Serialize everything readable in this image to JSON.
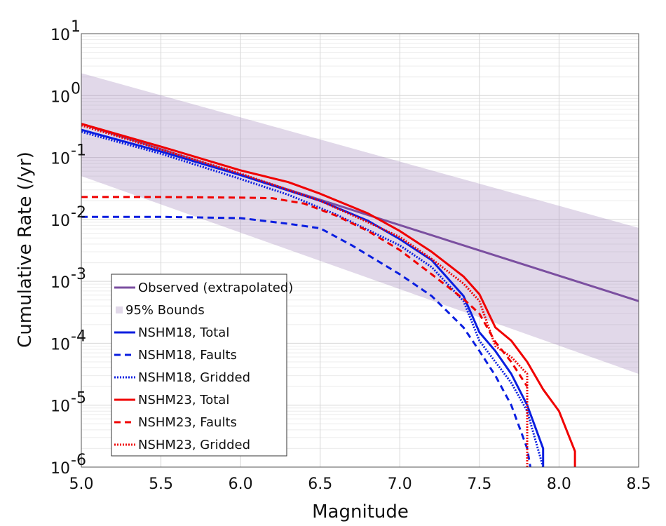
{
  "chart_data": {
    "type": "line",
    "title": "",
    "xlabel": "Magnitude",
    "ylabel": "Cumulative Rate (/yr)",
    "xlim": [
      5.0,
      8.5
    ],
    "ylim": [
      1e-06,
      10
    ],
    "yscale": "log",
    "grid": true,
    "legend_position": "bottom-left",
    "x_ticks": [
      "5.0",
      "5.5",
      "6.0",
      "6.5",
      "7.0",
      "7.5",
      "8.0",
      "8.5"
    ],
    "y_ticks": [
      {
        "base": "10",
        "exp": "-6",
        "value": 1e-06
      },
      {
        "base": "10",
        "exp": "-5",
        "value": 1e-05
      },
      {
        "base": "10",
        "exp": "-4",
        "value": 0.0001
      },
      {
        "base": "10",
        "exp": "-3",
        "value": 0.001
      },
      {
        "base": "10",
        "exp": "-2",
        "value": 0.01
      },
      {
        "base": "10",
        "exp": "-1",
        "value": 0.1
      },
      {
        "base": "10",
        "exp": "0",
        "value": 1
      },
      {
        "base": "10",
        "exp": "1",
        "value": 10
      }
    ],
    "bounds": {
      "name": "95% Bounds",
      "color": "#9b7fb5",
      "upper": [
        [
          5.0,
          2.3
        ],
        [
          8.5,
          0.0073
        ]
      ],
      "lower": [
        [
          5.0,
          0.05
        ],
        [
          8.5,
          3.2e-05
        ]
      ]
    },
    "series": [
      {
        "name": "Observed (extrapolated)",
        "color": "#7b4fa0",
        "dash": "solid",
        "points": [
          [
            5.0,
            0.35
          ],
          [
            8.5,
            0.00048
          ]
        ]
      },
      {
        "name": "NSHM18, Total",
        "color": "#0a1ee0",
        "dash": "solid",
        "points": [
          [
            5.0,
            0.28
          ],
          [
            5.5,
            0.125
          ],
          [
            6.0,
            0.052
          ],
          [
            6.5,
            0.02
          ],
          [
            6.8,
            0.0095
          ],
          [
            7.0,
            0.0048
          ],
          [
            7.2,
            0.0022
          ],
          [
            7.4,
            0.00058
          ],
          [
            7.5,
            0.00015
          ],
          [
            7.6,
            7.5e-05
          ],
          [
            7.7,
            3.2e-05
          ],
          [
            7.8,
            1e-05
          ],
          [
            7.9,
            2e-06
          ],
          [
            7.9,
            1e-06
          ]
        ]
      },
      {
        "name": "NSHM18, Faults",
        "color": "#0a1ee0",
        "dash": "dashed",
        "points": [
          [
            5.0,
            0.011
          ],
          [
            5.5,
            0.011
          ],
          [
            6.0,
            0.0105
          ],
          [
            6.3,
            0.0085
          ],
          [
            6.5,
            0.0072
          ],
          [
            6.7,
            0.0038
          ],
          [
            7.0,
            0.0013
          ],
          [
            7.2,
            0.00058
          ],
          [
            7.4,
            0.00018
          ],
          [
            7.5,
            7.5e-05
          ],
          [
            7.6,
            3e-05
          ],
          [
            7.7,
            1e-05
          ],
          [
            7.8,
            2e-06
          ],
          [
            7.82,
            1e-06
          ]
        ]
      },
      {
        "name": "NSHM18, Gridded",
        "color": "#0a1ee0",
        "dash": "dotted",
        "points": [
          [
            5.0,
            0.26
          ],
          [
            5.5,
            0.115
          ],
          [
            6.0,
            0.045
          ],
          [
            6.3,
            0.025
          ],
          [
            6.6,
            0.012
          ],
          [
            7.0,
            0.0038
          ],
          [
            7.2,
            0.0017
          ],
          [
            7.4,
            0.00048
          ],
          [
            7.5,
            0.00011
          ],
          [
            7.6,
            5e-05
          ],
          [
            7.7,
            2.3e-05
          ],
          [
            7.8,
            8e-06
          ],
          [
            7.9,
            1e-06
          ]
        ]
      },
      {
        "name": "NSHM23, Total",
        "color": "#f00000",
        "dash": "solid",
        "points": [
          [
            5.0,
            0.35
          ],
          [
            5.5,
            0.15
          ],
          [
            6.0,
            0.062
          ],
          [
            6.3,
            0.04
          ],
          [
            6.5,
            0.026
          ],
          [
            6.8,
            0.0125
          ],
          [
            7.0,
            0.0065
          ],
          [
            7.2,
            0.003
          ],
          [
            7.4,
            0.0012
          ],
          [
            7.5,
            0.00062
          ],
          [
            7.6,
            0.00018
          ],
          [
            7.7,
            0.00011
          ],
          [
            7.8,
            5e-05
          ],
          [
            7.9,
            1.8e-05
          ],
          [
            8.0,
            8e-06
          ],
          [
            8.1,
            1.8e-06
          ],
          [
            8.1,
            1e-06
          ]
        ]
      },
      {
        "name": "NSHM23, Faults",
        "color": "#f00000",
        "dash": "dashed",
        "points": [
          [
            5.0,
            0.023
          ],
          [
            5.5,
            0.023
          ],
          [
            6.0,
            0.0225
          ],
          [
            6.2,
            0.022
          ],
          [
            6.4,
            0.018
          ],
          [
            6.6,
            0.0115
          ],
          [
            6.8,
            0.0065
          ],
          [
            7.0,
            0.0032
          ],
          [
            7.2,
            0.0013
          ],
          [
            7.4,
            0.00052
          ],
          [
            7.5,
            0.0003
          ],
          [
            7.6,
            0.000105
          ],
          [
            7.7,
            5e-05
          ],
          [
            7.8,
            2e-05
          ]
        ]
      },
      {
        "name": "NSHM23, Gridded",
        "color": "#f00000",
        "dash": "dotted",
        "points": [
          [
            5.0,
            0.33
          ],
          [
            5.5,
            0.135
          ],
          [
            6.0,
            0.055
          ],
          [
            6.3,
            0.03
          ],
          [
            6.5,
            0.02
          ],
          [
            6.8,
            0.009
          ],
          [
            7.0,
            0.0052
          ],
          [
            7.2,
            0.0023
          ],
          [
            7.4,
            0.00092
          ],
          [
            7.5,
            0.00048
          ],
          [
            7.6,
            9e-05
          ],
          [
            7.7,
            6e-05
          ],
          [
            7.8,
            3.2e-05
          ],
          [
            7.8,
            1e-06
          ]
        ]
      }
    ]
  }
}
